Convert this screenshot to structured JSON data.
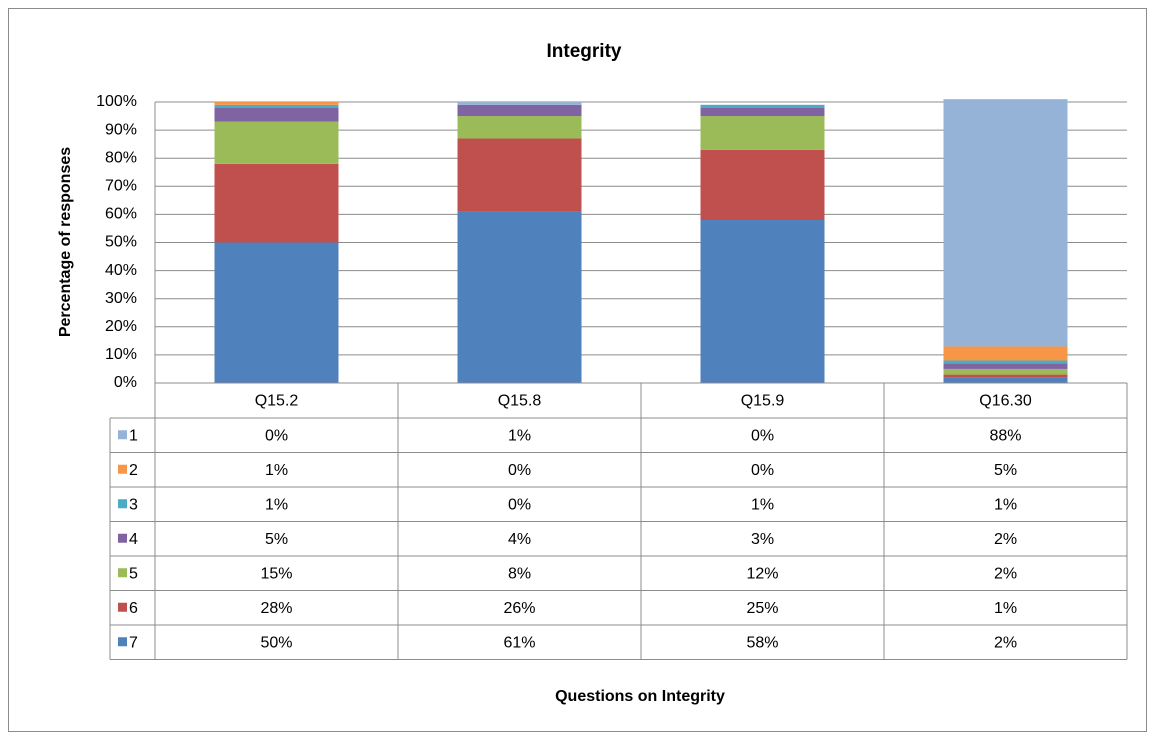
{
  "chart_data": {
    "type": "bar",
    "stacked": true,
    "title": "Integrity",
    "y_label": "Percentage of responses",
    "x_label": "Questions on Integrity",
    "categories": [
      "Q15.2",
      "Q15.8",
      "Q15.9",
      "Q16.30"
    ],
    "series": [
      {
        "name": "1",
        "color": "#95b3d7",
        "values": [
          0,
          1,
          0,
          88
        ],
        "value_labels": [
          "0%",
          "1%",
          "0%",
          "88%"
        ]
      },
      {
        "name": "2",
        "color": "#f79646",
        "values": [
          1,
          0,
          0,
          5
        ],
        "value_labels": [
          "1%",
          "0%",
          "0%",
          "5%"
        ]
      },
      {
        "name": "3",
        "color": "#4bacc6",
        "values": [
          1,
          0,
          1,
          1
        ],
        "value_labels": [
          "1%",
          "0%",
          "1%",
          "1%"
        ]
      },
      {
        "name": "4",
        "color": "#8064a2",
        "values": [
          5,
          4,
          3,
          2
        ],
        "value_labels": [
          "5%",
          "4%",
          "3%",
          "2%"
        ]
      },
      {
        "name": "5",
        "color": "#9bbb59",
        "values": [
          15,
          8,
          12,
          2
        ],
        "value_labels": [
          "15%",
          "8%",
          "12%",
          "2%"
        ]
      },
      {
        "name": "6",
        "color": "#c0504d",
        "values": [
          28,
          26,
          25,
          1
        ],
        "value_labels": [
          "28%",
          "26%",
          "25%",
          "1%"
        ]
      },
      {
        "name": "7",
        "color": "#4f81bd",
        "values": [
          50,
          61,
          58,
          2
        ],
        "value_labels": [
          "50%",
          "61%",
          "58%",
          "2%"
        ]
      }
    ],
    "ylim": [
      0,
      100
    ],
    "yticks": [
      {
        "value": 0,
        "label": "0%"
      },
      {
        "value": 10,
        "label": "10%"
      },
      {
        "value": 20,
        "label": "20%"
      },
      {
        "value": 30,
        "label": "30%"
      },
      {
        "value": 40,
        "label": "40%"
      },
      {
        "value": 50,
        "label": "50%"
      },
      {
        "value": 60,
        "label": "60%"
      },
      {
        "value": 70,
        "label": "70%"
      },
      {
        "value": 80,
        "label": "80%"
      },
      {
        "value": 90,
        "label": "90%"
      },
      {
        "value": 100,
        "label": "100%"
      }
    ],
    "grid": true,
    "data_table": true
  }
}
